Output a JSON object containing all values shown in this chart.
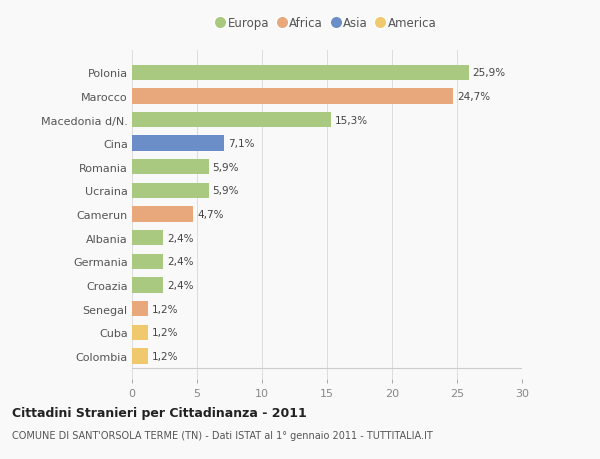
{
  "categories": [
    "Polonia",
    "Marocco",
    "Macedonia d/N.",
    "Cina",
    "Romania",
    "Ucraina",
    "Camerun",
    "Albania",
    "Germania",
    "Croazia",
    "Senegal",
    "Cuba",
    "Colombia"
  ],
  "values": [
    25.9,
    24.7,
    15.3,
    7.1,
    5.9,
    5.9,
    4.7,
    2.4,
    2.4,
    2.4,
    1.2,
    1.2,
    1.2
  ],
  "labels": [
    "25,9%",
    "24,7%",
    "15,3%",
    "7,1%",
    "5,9%",
    "5,9%",
    "4,7%",
    "2,4%",
    "2,4%",
    "2,4%",
    "1,2%",
    "1,2%",
    "1,2%"
  ],
  "continents": [
    "Europa",
    "Africa",
    "Europa",
    "Asia",
    "Europa",
    "Europa",
    "Africa",
    "Europa",
    "Europa",
    "Europa",
    "Africa",
    "America",
    "America"
  ],
  "colors": {
    "Europa": "#a8c97f",
    "Africa": "#e8a87c",
    "Asia": "#6b8ec9",
    "America": "#f0c96e"
  },
  "legend_order": [
    "Europa",
    "Africa",
    "Asia",
    "America"
  ],
  "xlim": [
    0,
    30
  ],
  "xticks": [
    0,
    5,
    10,
    15,
    20,
    25,
    30
  ],
  "title": "Cittadini Stranieri per Cittadinanza - 2011",
  "subtitle": "COMUNE DI SANT'ORSOLA TERME (TN) - Dati ISTAT al 1° gennaio 2011 - TUTTITALIA.IT",
  "background_color": "#f9f9f9",
  "bar_height": 0.65,
  "figsize": [
    6.0,
    4.6
  ],
  "dpi": 100
}
